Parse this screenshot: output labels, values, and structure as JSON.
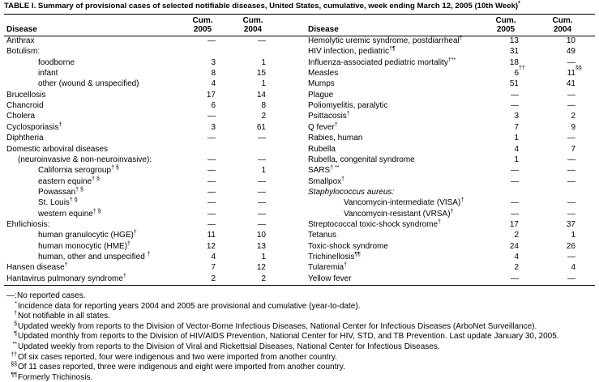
{
  "title": "TABLE I. Summary of provisional cases of selected notifiable diseases, United States, cumulative, week ending March 12, 2005 (10th Week)",
  "title_sup": "*",
  "header": {
    "disease": "Disease",
    "cum2005": [
      "Cum.",
      "2005"
    ],
    "cum2004": [
      "Cum.",
      "2004"
    ]
  },
  "left_rows": [
    {
      "disease": "Anthrax",
      "c2005": "—",
      "c2004": "—"
    },
    {
      "disease": "Botulism:"
    },
    {
      "disease": "foodborne",
      "c2005": "3",
      "c2004": "1"
    },
    {
      "disease": "infant",
      "c2005": "8",
      "c2004": "15"
    },
    {
      "disease": "other (wound & unspecified)",
      "c2005": "4",
      "c2004": "1"
    },
    {
      "disease": "Brucellosis",
      "c2005": "17",
      "c2004": "14"
    },
    {
      "disease": "Chancroid",
      "c2005": "6",
      "c2004": "8"
    },
    {
      "disease": "Cholera",
      "c2005": "—",
      "c2004": "2"
    },
    {
      "disease": "Cyclosporiasis",
      "sup": "†",
      "c2005": "3",
      "c2004": "61"
    },
    {
      "disease": "Diphtheria",
      "c2005": "—",
      "c2004": "—"
    },
    {
      "disease": "Domestic arboviral diseases"
    },
    {
      "disease": "(neuroinvasive & non-neuroinvasive):",
      "c2005": "—",
      "c2004": "—"
    },
    {
      "disease": "California serogroup",
      "sup": "† §",
      "c2005": "—",
      "c2004": "1"
    },
    {
      "disease": "eastern equine",
      "sup": "† §",
      "c2005": "—",
      "c2004": "—"
    },
    {
      "disease": "Powassan",
      "sup": "† §",
      "c2005": "—",
      "c2004": "—"
    },
    {
      "disease": "St. Louis",
      "sup": "† §",
      "c2005": "—",
      "c2004": "—"
    },
    {
      "disease": "western equine",
      "sup": "† §",
      "c2005": "—",
      "c2004": "—"
    },
    {
      "disease": "Ehrlichiosis:",
      "c2005": "—",
      "c2004": "—"
    },
    {
      "disease": "human granulocytic (HGE)",
      "sup": "†",
      "c2005": "11",
      "c2004": "10"
    },
    {
      "disease": "human monocytic (HME)",
      "sup": "†",
      "c2005": "12",
      "c2004": "13"
    },
    {
      "disease": "human, other and unspecified ",
      "sup": "†",
      "c2005": "4",
      "c2004": "1"
    },
    {
      "disease": "Hansen disease",
      "sup": "†",
      "c2005": "7",
      "c2004": "12"
    },
    {
      "disease": "Hantavirus pulmonary syndrome",
      "sup": "†",
      "c2005": "2",
      "c2004": "2"
    }
  ],
  "right_rows": [
    {
      "disease": "Hemolytic uremic syndrome, postdiarrheal",
      "sup": "†",
      "c2005": "13",
      "c2004": "10"
    },
    {
      "disease": "HIV infection, pediatric",
      "sup": "†¶",
      "c2005": "31",
      "c2004": "49"
    },
    {
      "disease": "Influenza-associated pediatric mortality",
      "sup": "†**",
      "c2005": "18",
      "c2004": "—"
    },
    {
      "disease": "Measles",
      "c2005": "6",
      "sup2005": "††",
      "c2004": "11",
      "sup2004": "§§"
    },
    {
      "disease": "Mumps",
      "c2005": "51",
      "c2004": "41"
    },
    {
      "disease": "Plague",
      "c2005": "—",
      "c2004": "—"
    },
    {
      "disease": "Poliomyelitis, paralytic",
      "c2005": "—",
      "c2004": "—"
    },
    {
      "disease": "Psittacosis",
      "sup": "†",
      "c2005": "3",
      "c2004": "2"
    },
    {
      "disease": "Q fever",
      "sup": "†",
      "c2005": "7",
      "c2004": "9"
    },
    {
      "disease": "Rabies, human",
      "c2005": "1",
      "c2004": "—"
    },
    {
      "disease": "Rubella",
      "c2005": "4",
      "c2004": "7"
    },
    {
      "disease": "Rubella, congenital syndrome",
      "c2005": "1",
      "c2004": "—"
    },
    {
      "disease": "SARS",
      "sup": "† **",
      "c2005": "—",
      "c2004": "—"
    },
    {
      "disease": "Smallpox",
      "sup": "†",
      "c2005": "—",
      "c2004": "—"
    },
    {
      "disease": "Staphylococcus aureus:"
    },
    {
      "disease": "Vancomycin-intermediate (VISA)",
      "sup": "†",
      "c2005": "—",
      "c2004": "—"
    },
    {
      "disease": "Vancomycin-resistant (VRSA)",
      "sup": "†",
      "c2005": "—",
      "c2004": "—"
    },
    {
      "disease": "Streptococcal toxic-shock syndrome",
      "sup": "†",
      "c2005": "17",
      "c2004": "37"
    },
    {
      "disease": "Tetanus",
      "c2005": "2",
      "c2004": "1"
    },
    {
      "disease": "Toxic-shock syndrome",
      "c2005": "24",
      "c2004": "26"
    },
    {
      "disease": "Trichinellosis",
      "sup": "¶¶",
      "c2005": "4",
      "c2004": "—"
    },
    {
      "disease": "Tularemia",
      "sup": "†",
      "c2005": "2",
      "c2004": "4"
    },
    {
      "disease": "Yellow fever",
      "c2005": "—",
      "c2004": "—"
    }
  ],
  "footnotes": [
    {
      "mark": "—:",
      "text": "No reported cases."
    },
    {
      "mark": "*",
      "text": "Incidence data for reporting years 2004 and 2005 are provisional and cumulative (year-to-date)."
    },
    {
      "mark": "†",
      "text": "Not notifiable in all states."
    },
    {
      "mark": "§",
      "text": "Updated weekly from reports to the Division of Vector-Borne Infectious Diseases, National Center for Infectious Diseases (ArboNet Surveillance)."
    },
    {
      "mark": "¶",
      "text": "Updated monthly from reports to the Division of HIV/AIDS Prevention, National Center for HIV, STD, and TB Prevention. Last update January 30, 2005."
    },
    {
      "mark": "**",
      "text": "Updated weekly from reports to the Division of Viral and Rickettsial Diseases, National Center for Infectious Diseases."
    },
    {
      "mark": "††",
      "text": "Of six cases reported, four were indigenous and two were imported from another country."
    },
    {
      "mark": "§§",
      "text": "Of 11 cases reported, three were indigenous and eight were imported from another country."
    },
    {
      "mark": "¶¶",
      "text": "Formerly Trichinosis."
    }
  ]
}
